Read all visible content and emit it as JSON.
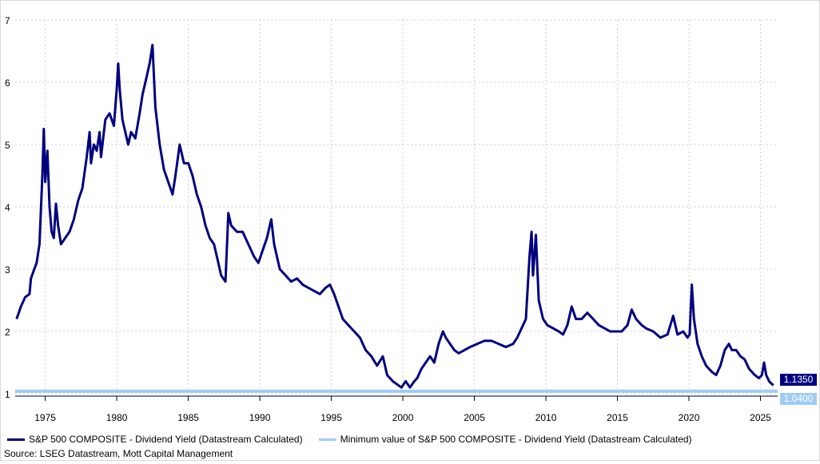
{
  "chart_data": {
    "type": "line",
    "title": "",
    "xlabel": "",
    "ylabel": "",
    "xlim": [
      1972.9,
      2026.2
    ],
    "ylim": [
      1,
      7
    ],
    "x_ticks": [
      1975,
      1980,
      1985,
      1990,
      1995,
      2000,
      2005,
      2010,
      2015,
      2020,
      2025
    ],
    "y_ticks": [
      1,
      2,
      3,
      4,
      5,
      6,
      7
    ],
    "grid": true,
    "colors": {
      "primary": "#00007f",
      "minimum": "#9fccf5",
      "grid": "#cfcfcf"
    },
    "series": [
      {
        "name": "S&P 500 COMPOSITE - Dividend Yield (Datastream Calculated)",
        "last_value_label": "1.1350",
        "points": [
          [
            1973.0,
            2.2
          ],
          [
            1973.3,
            2.4
          ],
          [
            1973.6,
            2.55
          ],
          [
            1973.9,
            2.6
          ],
          [
            1974.0,
            2.85
          ],
          [
            1974.2,
            2.98
          ],
          [
            1974.4,
            3.1
          ],
          [
            1974.6,
            3.4
          ],
          [
            1974.8,
            4.5
          ],
          [
            1974.9,
            5.25
          ],
          [
            1975.0,
            4.4
          ],
          [
            1975.15,
            4.9
          ],
          [
            1975.3,
            4.0
          ],
          [
            1975.45,
            3.6
          ],
          [
            1975.6,
            3.5
          ],
          [
            1975.75,
            4.05
          ],
          [
            1975.9,
            3.7
          ],
          [
            1976.1,
            3.4
          ],
          [
            1976.4,
            3.5
          ],
          [
            1976.7,
            3.6
          ],
          [
            1977.0,
            3.8
          ],
          [
            1977.3,
            4.1
          ],
          [
            1977.6,
            4.3
          ],
          [
            1977.9,
            4.8
          ],
          [
            1978.1,
            5.2
          ],
          [
            1978.2,
            4.7
          ],
          [
            1978.4,
            5.0
          ],
          [
            1978.6,
            4.9
          ],
          [
            1978.8,
            5.2
          ],
          [
            1978.9,
            4.8
          ],
          [
            1979.2,
            5.4
          ],
          [
            1979.5,
            5.5
          ],
          [
            1979.8,
            5.3
          ],
          [
            1980.0,
            5.9
          ],
          [
            1980.1,
            6.3
          ],
          [
            1980.2,
            5.9
          ],
          [
            1980.4,
            5.4
          ],
          [
            1980.6,
            5.2
          ],
          [
            1980.8,
            5.0
          ],
          [
            1981.0,
            5.2
          ],
          [
            1981.3,
            5.1
          ],
          [
            1981.6,
            5.5
          ],
          [
            1981.8,
            5.8
          ],
          [
            1982.0,
            6.0
          ],
          [
            1982.3,
            6.3
          ],
          [
            1982.5,
            6.6
          ],
          [
            1982.7,
            5.6
          ],
          [
            1983.0,
            5.0
          ],
          [
            1983.3,
            4.6
          ],
          [
            1983.6,
            4.4
          ],
          [
            1983.9,
            4.2
          ],
          [
            1984.1,
            4.5
          ],
          [
            1984.4,
            5.0
          ],
          [
            1984.7,
            4.7
          ],
          [
            1985.0,
            4.7
          ],
          [
            1985.3,
            4.5
          ],
          [
            1985.6,
            4.2
          ],
          [
            1985.9,
            4.0
          ],
          [
            1986.2,
            3.7
          ],
          [
            1986.5,
            3.5
          ],
          [
            1986.8,
            3.4
          ],
          [
            1987.0,
            3.2
          ],
          [
            1987.3,
            2.9
          ],
          [
            1987.6,
            2.8
          ],
          [
            1987.8,
            3.9
          ],
          [
            1988.0,
            3.7
          ],
          [
            1988.4,
            3.6
          ],
          [
            1988.8,
            3.6
          ],
          [
            1989.2,
            3.4
          ],
          [
            1989.6,
            3.2
          ],
          [
            1989.9,
            3.1
          ],
          [
            1990.2,
            3.3
          ],
          [
            1990.5,
            3.5
          ],
          [
            1990.8,
            3.8
          ],
          [
            1991.0,
            3.4
          ],
          [
            1991.4,
            3.0
          ],
          [
            1991.8,
            2.9
          ],
          [
            1992.2,
            2.8
          ],
          [
            1992.6,
            2.85
          ],
          [
            1993.0,
            2.75
          ],
          [
            1993.4,
            2.7
          ],
          [
            1993.8,
            2.65
          ],
          [
            1994.2,
            2.6
          ],
          [
            1994.6,
            2.7
          ],
          [
            1994.9,
            2.75
          ],
          [
            1995.2,
            2.6
          ],
          [
            1995.5,
            2.4
          ],
          [
            1995.8,
            2.2
          ],
          [
            1996.2,
            2.1
          ],
          [
            1996.6,
            2.0
          ],
          [
            1997.0,
            1.9
          ],
          [
            1997.4,
            1.7
          ],
          [
            1997.8,
            1.6
          ],
          [
            1998.2,
            1.45
          ],
          [
            1998.6,
            1.6
          ],
          [
            1998.9,
            1.3
          ],
          [
            1999.3,
            1.2
          ],
          [
            1999.6,
            1.15
          ],
          [
            1999.9,
            1.1
          ],
          [
            2000.2,
            1.2
          ],
          [
            2000.5,
            1.1
          ],
          [
            2000.8,
            1.2
          ],
          [
            2001.0,
            1.25
          ],
          [
            2001.3,
            1.4
          ],
          [
            2001.6,
            1.5
          ],
          [
            2001.9,
            1.6
          ],
          [
            2002.2,
            1.5
          ],
          [
            2002.5,
            1.8
          ],
          [
            2002.8,
            2.0
          ],
          [
            2003.0,
            1.9
          ],
          [
            2003.3,
            1.8
          ],
          [
            2003.6,
            1.7
          ],
          [
            2003.9,
            1.65
          ],
          [
            2004.3,
            1.7
          ],
          [
            2004.7,
            1.75
          ],
          [
            2005.2,
            1.8
          ],
          [
            2005.7,
            1.85
          ],
          [
            2006.2,
            1.85
          ],
          [
            2006.7,
            1.8
          ],
          [
            2007.2,
            1.75
          ],
          [
            2007.7,
            1.8
          ],
          [
            2008.0,
            1.9
          ],
          [
            2008.3,
            2.05
          ],
          [
            2008.6,
            2.2
          ],
          [
            2008.85,
            3.2
          ],
          [
            2009.0,
            3.6
          ],
          [
            2009.1,
            2.9
          ],
          [
            2009.3,
            3.55
          ],
          [
            2009.5,
            2.5
          ],
          [
            2009.8,
            2.2
          ],
          [
            2010.1,
            2.1
          ],
          [
            2010.5,
            2.05
          ],
          [
            2010.9,
            2.0
          ],
          [
            2011.2,
            1.95
          ],
          [
            2011.5,
            2.1
          ],
          [
            2011.8,
            2.4
          ],
          [
            2012.1,
            2.2
          ],
          [
            2012.5,
            2.2
          ],
          [
            2012.9,
            2.3
          ],
          [
            2013.3,
            2.2
          ],
          [
            2013.7,
            2.1
          ],
          [
            2014.1,
            2.05
          ],
          [
            2014.5,
            2.0
          ],
          [
            2014.9,
            2.0
          ],
          [
            2015.3,
            2.0
          ],
          [
            2015.7,
            2.1
          ],
          [
            2016.0,
            2.35
          ],
          [
            2016.3,
            2.2
          ],
          [
            2016.7,
            2.1
          ],
          [
            2017.0,
            2.05
          ],
          [
            2017.5,
            2.0
          ],
          [
            2018.0,
            1.9
          ],
          [
            2018.5,
            1.95
          ],
          [
            2018.9,
            2.25
          ],
          [
            2019.2,
            1.95
          ],
          [
            2019.6,
            2.0
          ],
          [
            2019.9,
            1.9
          ],
          [
            2020.05,
            1.95
          ],
          [
            2020.2,
            2.75
          ],
          [
            2020.35,
            2.2
          ],
          [
            2020.6,
            1.8
          ],
          [
            2020.9,
            1.6
          ],
          [
            2021.2,
            1.45
          ],
          [
            2021.6,
            1.35
          ],
          [
            2021.9,
            1.3
          ],
          [
            2022.2,
            1.45
          ],
          [
            2022.5,
            1.7
          ],
          [
            2022.8,
            1.8
          ],
          [
            2023.0,
            1.7
          ],
          [
            2023.3,
            1.7
          ],
          [
            2023.6,
            1.6
          ],
          [
            2023.9,
            1.55
          ],
          [
            2024.2,
            1.4
          ],
          [
            2024.6,
            1.3
          ],
          [
            2024.9,
            1.25
          ],
          [
            2025.1,
            1.3
          ],
          [
            2025.25,
            1.5
          ],
          [
            2025.4,
            1.3
          ],
          [
            2025.6,
            1.2
          ],
          [
            2025.9,
            1.135
          ]
        ]
      },
      {
        "name": "Minimum value of S&P 500 COMPOSITE - Dividend Yield (Datastream Calculated)",
        "last_value_label": "1.0400",
        "points": [
          [
            1972.9,
            1.04
          ],
          [
            2026.2,
            1.04
          ]
        ]
      }
    ]
  },
  "source": "Source: LSEG Datastream, Mott Capital Management"
}
